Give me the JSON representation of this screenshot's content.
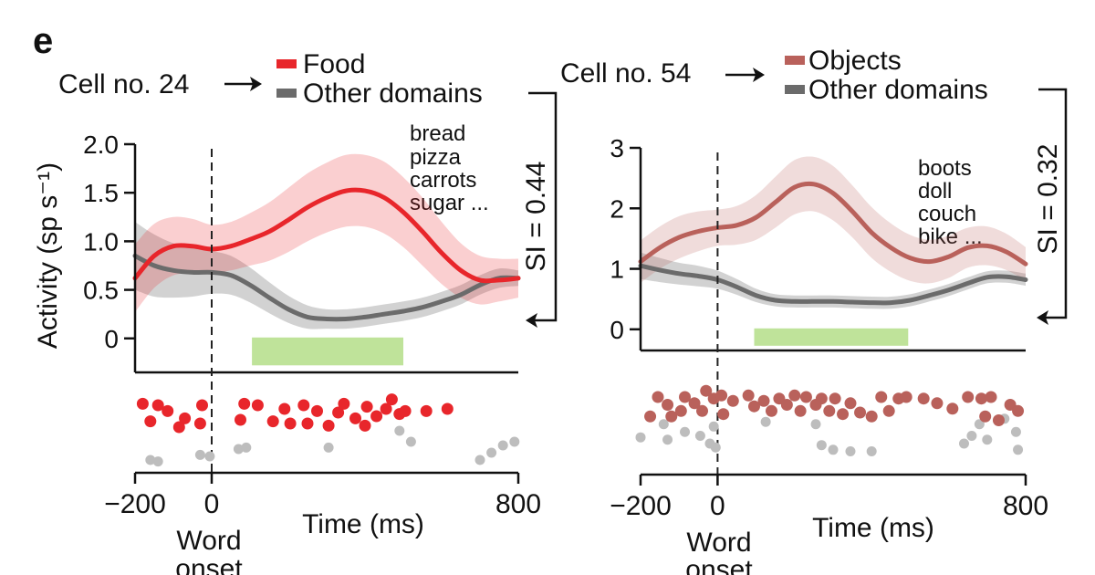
{
  "panel_label": "e",
  "colors": {
    "food": "#e8262b",
    "objects": "#b9615b",
    "other": "#6b6b6b",
    "other_raster": "#bdbdbd",
    "window": "#bfe39a"
  },
  "chart_data": [
    {
      "type": "line",
      "cell_label": "Cell no. 24",
      "ylabel": "Activity (sp s⁻¹)",
      "xlabel": "Time (ms)",
      "onset_label": [
        "Word",
        "onset"
      ],
      "xlim": [
        -200,
        800
      ],
      "ylim": [
        -0.35,
        2.0
      ],
      "xticks": [
        -200,
        0,
        800
      ],
      "xtick_labels": [
        "−200",
        "0",
        "800"
      ],
      "yticks": [
        0,
        0.5,
        1.0,
        1.5,
        2.0
      ],
      "ytick_labels": [
        "0",
        "0.5",
        "1.0",
        "1.5",
        "2.0"
      ],
      "window": [
        105,
        500
      ],
      "si_label": "SI = 0.44",
      "words": [
        "bread",
        "pizza",
        "carrots",
        "sugar ..."
      ],
      "series": [
        {
          "name": "Food",
          "color": "#e8262b",
          "x": [
            -200,
            -150,
            -100,
            -50,
            0,
            50,
            100,
            150,
            200,
            250,
            300,
            350,
            400,
            450,
            500,
            550,
            600,
            650,
            700,
            750,
            800
          ],
          "y": [
            0.62,
            0.85,
            0.95,
            0.95,
            0.92,
            0.95,
            1.02,
            1.1,
            1.22,
            1.35,
            1.45,
            1.52,
            1.52,
            1.45,
            1.3,
            1.1,
            0.88,
            0.7,
            0.6,
            0.6,
            0.62
          ],
          "band": [
            0.35,
            0.33,
            0.3,
            0.28,
            0.25,
            0.25,
            0.27,
            0.3,
            0.33,
            0.35,
            0.36,
            0.37,
            0.37,
            0.37,
            0.36,
            0.35,
            0.32,
            0.28,
            0.25,
            0.22,
            0.2
          ]
        },
        {
          "name": "Other domains",
          "color": "#6b6b6b",
          "x": [
            -200,
            -150,
            -100,
            -50,
            0,
            50,
            100,
            150,
            200,
            250,
            300,
            350,
            400,
            450,
            500,
            550,
            600,
            650,
            700,
            750,
            800
          ],
          "y": [
            0.85,
            0.75,
            0.7,
            0.68,
            0.68,
            0.65,
            0.55,
            0.42,
            0.3,
            0.22,
            0.2,
            0.2,
            0.22,
            0.25,
            0.28,
            0.32,
            0.38,
            0.45,
            0.55,
            0.62,
            0.62
          ],
          "band": [
            0.35,
            0.32,
            0.28,
            0.25,
            0.22,
            0.2,
            0.18,
            0.16,
            0.14,
            0.12,
            0.1,
            0.1,
            0.1,
            0.1,
            0.1,
            0.1,
            0.1,
            0.1,
            0.1,
            0.1,
            0.08
          ]
        }
      ],
      "raster": {
        "target": [
          [
            -180,
            0.82
          ],
          [
            -160,
            0.58
          ],
          [
            -140,
            0.8
          ],
          [
            -115,
            0.72
          ],
          [
            -85,
            0.5
          ],
          [
            -70,
            0.62
          ],
          [
            -25,
            0.8
          ],
          [
            -30,
            0.55
          ],
          [
            85,
            0.82
          ],
          [
            75,
            0.6
          ],
          [
            120,
            0.8
          ],
          [
            160,
            0.58
          ],
          [
            190,
            0.75
          ],
          [
            205,
            0.55
          ],
          [
            240,
            0.8
          ],
          [
            250,
            0.55
          ],
          [
            275,
            0.72
          ],
          [
            305,
            0.52
          ],
          [
            330,
            0.7
          ],
          [
            345,
            0.82
          ],
          [
            375,
            0.62
          ],
          [
            405,
            0.78
          ],
          [
            400,
            0.52
          ],
          [
            430,
            0.65
          ],
          [
            455,
            0.75
          ],
          [
            470,
            0.88
          ],
          [
            490,
            0.68
          ],
          [
            505,
            0.72
          ],
          [
            560,
            0.72
          ],
          [
            615,
            0.75
          ]
        ],
        "other": [
          [
            -160,
            0.05
          ],
          [
            -140,
            0.03
          ],
          [
            -30,
            0.12
          ],
          [
            -5,
            0.1
          ],
          [
            70,
            0.2
          ],
          [
            90,
            0.22
          ],
          [
            305,
            0.22
          ],
          [
            490,
            0.45
          ],
          [
            520,
            0.3
          ],
          [
            700,
            0.05
          ],
          [
            730,
            0.15
          ],
          [
            760,
            0.25
          ],
          [
            790,
            0.3
          ]
        ]
      }
    },
    {
      "type": "line",
      "cell_label": "Cell no. 54",
      "ylabel": "",
      "xlabel": "Time (ms)",
      "onset_label": [
        "Word",
        "onset"
      ],
      "xlim": [
        -200,
        800
      ],
      "ylim": [
        -0.35,
        3.0
      ],
      "xticks": [
        -200,
        0,
        800
      ],
      "xtick_labels": [
        "−200",
        "0",
        "800"
      ],
      "yticks": [
        0,
        1,
        2,
        3
      ],
      "ytick_labels": [
        "0",
        "1",
        "2",
        "3"
      ],
      "window": [
        95,
        495
      ],
      "si_label": "SI = 0.32",
      "words": [
        "boots",
        "doll",
        "couch",
        "bike ..."
      ],
      "series": [
        {
          "name": "Objects",
          "color": "#b9615b",
          "x": [
            -200,
            -150,
            -100,
            -50,
            0,
            50,
            100,
            150,
            200,
            250,
            300,
            350,
            400,
            450,
            500,
            550,
            600,
            650,
            700,
            750,
            800
          ],
          "y": [
            1.12,
            1.35,
            1.52,
            1.62,
            1.68,
            1.72,
            1.85,
            2.1,
            2.35,
            2.4,
            2.25,
            1.95,
            1.6,
            1.35,
            1.18,
            1.12,
            1.2,
            1.35,
            1.38,
            1.28,
            1.08
          ],
          "band": [
            0.35,
            0.35,
            0.35,
            0.33,
            0.3,
            0.32,
            0.37,
            0.42,
            0.45,
            0.45,
            0.45,
            0.43,
            0.42,
            0.4,
            0.38,
            0.36,
            0.35,
            0.33,
            0.32,
            0.3,
            0.28
          ]
        },
        {
          "name": "Other domains",
          "color": "#6b6b6b",
          "x": [
            -200,
            -150,
            -100,
            -50,
            0,
            50,
            100,
            150,
            200,
            250,
            300,
            350,
            400,
            450,
            500,
            550,
            600,
            650,
            700,
            750,
            800
          ],
          "y": [
            1.05,
            0.98,
            0.92,
            0.88,
            0.82,
            0.7,
            0.56,
            0.48,
            0.46,
            0.46,
            0.46,
            0.45,
            0.44,
            0.44,
            0.48,
            0.56,
            0.65,
            0.76,
            0.86,
            0.87,
            0.82
          ],
          "band": [
            0.22,
            0.2,
            0.18,
            0.17,
            0.15,
            0.13,
            0.11,
            0.1,
            0.1,
            0.1,
            0.1,
            0.1,
            0.1,
            0.1,
            0.1,
            0.1,
            0.1,
            0.1,
            0.1,
            0.1,
            0.1
          ]
        }
      ],
      "raster": {
        "target": [
          [
            -155,
            0.8
          ],
          [
            -175,
            0.55
          ],
          [
            -130,
            0.7
          ],
          [
            -120,
            0.55
          ],
          [
            -95,
            0.62
          ],
          [
            -85,
            0.8
          ],
          [
            -60,
            0.72
          ],
          [
            -40,
            0.62
          ],
          [
            -30,
            0.88
          ],
          [
            -10,
            0.78
          ],
          [
            10,
            0.82
          ],
          [
            15,
            0.58
          ],
          [
            40,
            0.75
          ],
          [
            80,
            0.82
          ],
          [
            95,
            0.68
          ],
          [
            120,
            0.75
          ],
          [
            140,
            0.62
          ],
          [
            160,
            0.78
          ],
          [
            180,
            0.7
          ],
          [
            200,
            0.82
          ],
          [
            215,
            0.62
          ],
          [
            230,
            0.8
          ],
          [
            255,
            0.7
          ],
          [
            270,
            0.78
          ],
          [
            290,
            0.62
          ],
          [
            305,
            0.78
          ],
          [
            325,
            0.58
          ],
          [
            345,
            0.72
          ],
          [
            370,
            0.6
          ],
          [
            400,
            0.55
          ],
          [
            425,
            0.8
          ],
          [
            445,
            0.62
          ],
          [
            470,
            0.78
          ],
          [
            490,
            0.8
          ],
          [
            535,
            0.78
          ],
          [
            570,
            0.72
          ],
          [
            610,
            0.65
          ],
          [
            650,
            0.8
          ],
          [
            685,
            0.78
          ],
          [
            695,
            0.55
          ],
          [
            710,
            0.8
          ],
          [
            730,
            0.5
          ],
          [
            760,
            0.7
          ],
          [
            780,
            0.62
          ]
        ],
        "other": [
          [
            -200,
            0.28
          ],
          [
            -140,
            0.45
          ],
          [
            -130,
            0.25
          ],
          [
            -85,
            0.35
          ],
          [
            -45,
            0.3
          ],
          [
            -20,
            0.2
          ],
          [
            -10,
            0.42
          ],
          [
            -5,
            0.15
          ],
          [
            125,
            0.48
          ],
          [
            255,
            0.45
          ],
          [
            270,
            0.18
          ],
          [
            300,
            0.12
          ],
          [
            345,
            0.1
          ],
          [
            400,
            0.1
          ],
          [
            640,
            0.2
          ],
          [
            660,
            0.3
          ],
          [
            680,
            0.45
          ],
          [
            700,
            0.25
          ],
          [
            745,
            0.52
          ],
          [
            775,
            0.35
          ],
          [
            780,
            0.12
          ]
        ]
      }
    }
  ]
}
